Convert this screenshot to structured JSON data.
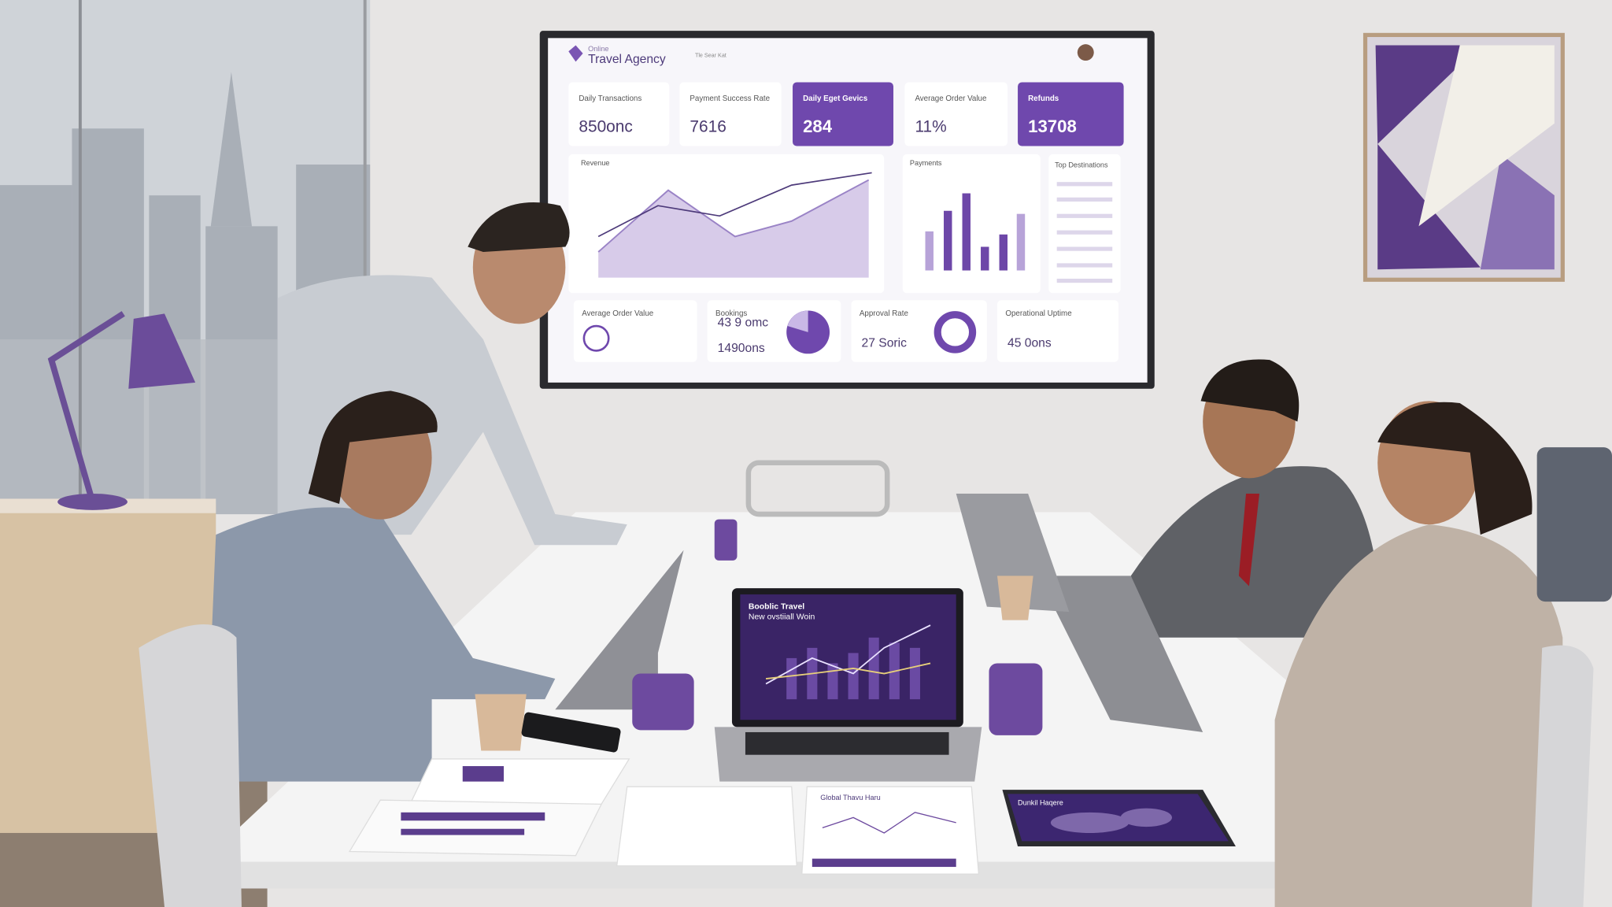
{
  "screen": {
    "header": {
      "brand_top": "Online",
      "brand": "Travel Agency",
      "search": "Tle Sear Kat"
    },
    "kpis": [
      {
        "label": "Daily Transactions",
        "value": "850onc"
      },
      {
        "label": "Payment Success Rate",
        "value": "7616"
      },
      {
        "label": "Daily Eget Gevics",
        "value": "284"
      },
      {
        "label": "Average Order Value",
        "value": "11%"
      },
      {
        "label": "Refunds",
        "value": "13708"
      }
    ],
    "panels": {
      "revenue": "Revenue",
      "payments": "Payments",
      "destinations": "Top Destinations"
    },
    "bottom": [
      {
        "label": "Average Order Value",
        "value": ""
      },
      {
        "label": "Bookings",
        "value": "43 9 omc",
        "value2": "1490ons"
      },
      {
        "label": "Approval Rate",
        "value": "27 Soric"
      },
      {
        "label": "Operational Uptime",
        "value": "45 0ons"
      }
    ]
  },
  "laptop": {
    "title": "Booblic Travel",
    "subtitle": "New ovstiiall Woin"
  },
  "paper": {
    "title": "Global Thavu Haru"
  },
  "tablet": {
    "title": "Dunkil Haqere"
  }
}
